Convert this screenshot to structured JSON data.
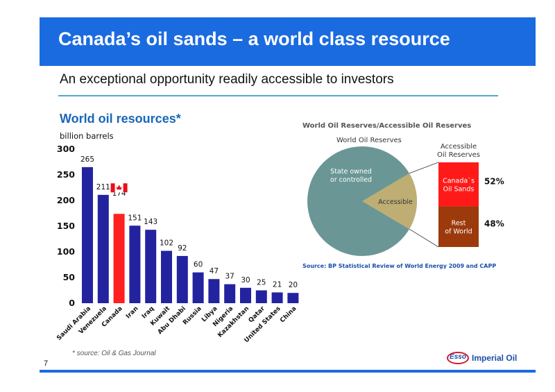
{
  "slide": {
    "title": "Canada’s oil sands – a world class resource",
    "subtitle": "An exceptional opportunity readily accessible to investors",
    "page_number": "7",
    "source_note": "* source: Oil & Gas Journal",
    "logo_mark": "Esso",
    "logo_text": "Imperial Oil",
    "colors": {
      "title_bar": "#1a6be0",
      "bar": "#2323a0",
      "canada_bar": "#ff2020",
      "heading": "#1866b8"
    }
  },
  "chart_data": [
    {
      "type": "bar",
      "title": "World oil resources*",
      "ylabel": "billion barrels",
      "categories": [
        "Saudi Arabia",
        "Venezuela",
        "Canada",
        "Iran",
        "Iraq",
        "Kuwait",
        "Abu Dhabi",
        "Russia",
        "Libya",
        "Nigeria",
        "Kazakhstan",
        "Qatar",
        "United States",
        "China"
      ],
      "values": [
        265,
        211,
        174,
        151,
        143,
        102,
        92,
        60,
        47,
        37,
        30,
        25,
        21,
        20
      ],
      "highlight": "Canada",
      "ylim": [
        0,
        300
      ],
      "yticks": [
        0,
        50,
        100,
        150,
        200,
        250,
        300
      ],
      "grid": false,
      "flag_icon": "canada-flag-icon"
    },
    {
      "type": "pie",
      "title": "World Oil Reserves/Accessible Oil Reserves",
      "subtitle": "World Oil Reserves",
      "slices": [
        {
          "label": "State owned or controlled",
          "value": 83
        },
        {
          "label": "Accessible",
          "value": 17
        }
      ],
      "breakdown": {
        "title": "Accessible Oil Reserves",
        "segments": [
          {
            "label": "Canada`s Oil Sands",
            "value": 52,
            "value_label": "52%",
            "color": "#ff1a1a"
          },
          {
            "label": "Rest of World",
            "value": 48,
            "value_label": "48%",
            "color": "#9c3a0c"
          }
        ]
      },
      "source": "Source: BP Statistical Review of World Energy 2009 and CAPP"
    }
  ]
}
